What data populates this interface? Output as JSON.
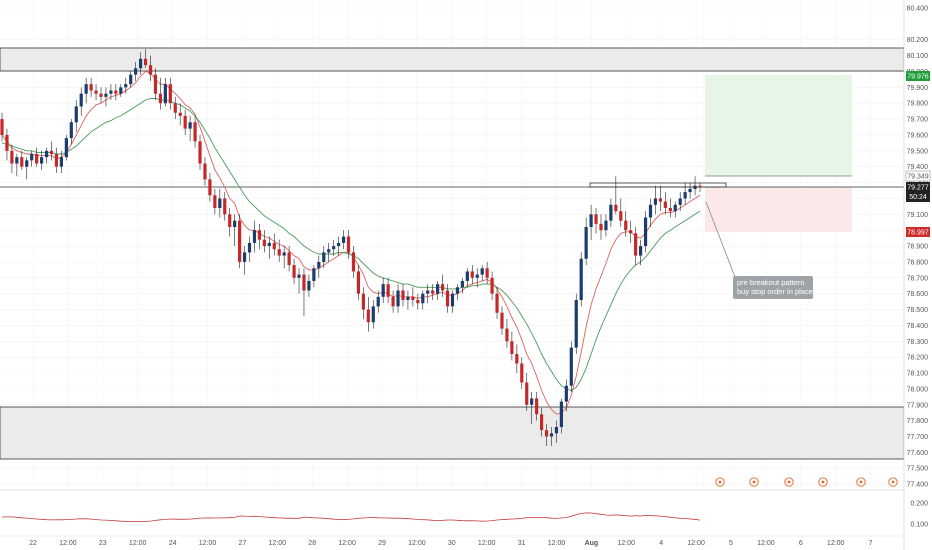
{
  "chart_data": {
    "type": "candlestick",
    "y_axis": {
      "range": [
        77.34,
        80.48
      ],
      "ticks": [
        "80.400",
        "80.200",
        "80.100",
        "80.000",
        "79.900",
        "79.800",
        "79.700",
        "79.600",
        "79.500",
        "79.400",
        "79.300",
        "79.200",
        "79.100",
        "79.000",
        "78.900",
        "78.800",
        "78.700",
        "78.600",
        "78.500",
        "78.400",
        "78.300",
        "78.200",
        "78.100",
        "78.000",
        "77.900",
        "77.800",
        "77.700",
        "77.600",
        "77.500",
        "77.400"
      ]
    },
    "x_axis": {
      "ticks": [
        "22",
        "12:00",
        "23",
        "12:00",
        "24",
        "12:00",
        "27",
        "12:00",
        "28",
        "12:00",
        "29",
        "12:00",
        "30",
        "12:00",
        "31",
        "12:00",
        "Aug",
        "12:00",
        "4",
        "12:00",
        "5",
        "12:00",
        "6",
        "12:00",
        "7"
      ]
    },
    "price_labels": {
      "target": "79.976",
      "line": "79.349",
      "current": "79.277",
      "countdown": "50:24",
      "stop": "78.997"
    },
    "indicator_axis": {
      "ticks": [
        "0.200",
        "0.100"
      ]
    },
    "annotation": "pre breakout pattern\nbuy stop order in place",
    "candles": [
      [
        79.7,
        79.74,
        79.56,
        79.6
      ],
      [
        79.6,
        79.64,
        79.44,
        79.5
      ],
      [
        79.5,
        79.54,
        79.36,
        79.42
      ],
      [
        79.42,
        79.48,
        79.34,
        79.46
      ],
      [
        79.46,
        79.5,
        79.38,
        79.4
      ],
      [
        79.4,
        79.46,
        79.32,
        79.44
      ],
      [
        79.44,
        79.5,
        79.4,
        79.48
      ],
      [
        79.48,
        79.52,
        79.4,
        79.42
      ],
      [
        79.42,
        79.5,
        79.38,
        79.46
      ],
      [
        79.46,
        79.52,
        79.42,
        79.5
      ],
      [
        79.5,
        79.56,
        79.44,
        79.48
      ],
      [
        79.48,
        79.52,
        79.36,
        79.4
      ],
      [
        79.4,
        79.5,
        79.36,
        79.46
      ],
      [
        79.46,
        79.6,
        79.44,
        79.58
      ],
      [
        79.58,
        79.7,
        79.54,
        79.68
      ],
      [
        79.68,
        79.82,
        79.62,
        79.78
      ],
      [
        79.78,
        79.9,
        79.72,
        79.86
      ],
      [
        79.86,
        79.96,
        79.8,
        79.92
      ],
      [
        79.92,
        79.96,
        79.84,
        79.88
      ],
      [
        79.88,
        79.92,
        79.82,
        79.86
      ],
      [
        79.86,
        79.9,
        79.8,
        79.84
      ],
      [
        79.84,
        79.9,
        79.78,
        79.86
      ],
      [
        79.86,
        79.92,
        79.82,
        79.88
      ],
      [
        79.88,
        79.92,
        79.82,
        79.86
      ],
      [
        79.86,
        79.92,
        79.84,
        79.9
      ],
      [
        79.9,
        79.96,
        79.86,
        79.92
      ],
      [
        79.92,
        80.0,
        79.9,
        79.98
      ],
      [
        79.98,
        80.06,
        79.94,
        80.02
      ],
      [
        80.02,
        80.12,
        79.98,
        80.08
      ],
      [
        80.08,
        80.14,
        80.02,
        80.04
      ],
      [
        80.04,
        80.1,
        79.94,
        79.98
      ],
      [
        79.98,
        80.02,
        79.82,
        79.86
      ],
      [
        79.86,
        79.96,
        79.76,
        79.8
      ],
      [
        79.8,
        79.96,
        79.78,
        79.92
      ],
      [
        79.92,
        79.96,
        79.76,
        79.8
      ],
      [
        79.8,
        79.84,
        79.7,
        79.74
      ],
      [
        79.74,
        79.8,
        79.66,
        79.72
      ],
      [
        79.72,
        79.76,
        79.6,
        79.64
      ],
      [
        79.64,
        79.72,
        79.56,
        79.68
      ],
      [
        79.68,
        79.72,
        79.52,
        79.56
      ],
      [
        79.56,
        79.6,
        79.38,
        79.42
      ],
      [
        79.42,
        79.46,
        79.28,
        79.32
      ],
      [
        79.32,
        79.36,
        79.18,
        79.22
      ],
      [
        79.22,
        79.26,
        79.1,
        79.14
      ],
      [
        79.14,
        79.26,
        79.08,
        79.2
      ],
      [
        79.2,
        79.24,
        79.06,
        79.1
      ],
      [
        79.1,
        79.14,
        78.96,
        79.02
      ],
      [
        79.02,
        79.1,
        78.9,
        79.06
      ],
      [
        79.06,
        79.1,
        78.76,
        78.8
      ],
      [
        78.8,
        78.9,
        78.72,
        78.86
      ],
      [
        78.86,
        78.96,
        78.8,
        78.92
      ],
      [
        78.92,
        79.06,
        78.86,
        79.0
      ],
      [
        79.0,
        79.04,
        78.88,
        78.94
      ],
      [
        78.94,
        79.0,
        78.86,
        78.9
      ],
      [
        78.9,
        78.96,
        78.82,
        78.92
      ],
      [
        78.92,
        78.98,
        78.84,
        78.88
      ],
      [
        78.88,
        78.94,
        78.8,
        78.84
      ],
      [
        78.84,
        78.9,
        78.76,
        78.86
      ],
      [
        78.86,
        78.9,
        78.74,
        78.78
      ],
      [
        78.78,
        78.82,
        78.66,
        78.7
      ],
      [
        78.7,
        78.76,
        78.6,
        78.72
      ],
      [
        78.72,
        78.76,
        78.46,
        78.62
      ],
      [
        78.62,
        78.72,
        78.58,
        78.68
      ],
      [
        78.68,
        78.78,
        78.64,
        78.76
      ],
      [
        78.76,
        78.84,
        78.7,
        78.8
      ],
      [
        78.8,
        78.9,
        78.76,
        78.86
      ],
      [
        78.86,
        78.92,
        78.8,
        78.88
      ],
      [
        78.88,
        78.94,
        78.84,
        78.9
      ],
      [
        78.9,
        78.96,
        78.84,
        78.92
      ],
      [
        78.92,
        79.0,
        78.88,
        78.96
      ],
      [
        78.96,
        79.0,
        78.82,
        78.86
      ],
      [
        78.86,
        78.9,
        78.7,
        78.74
      ],
      [
        78.74,
        78.78,
        78.56,
        78.6
      ],
      [
        78.6,
        78.64,
        78.44,
        78.5
      ],
      [
        78.5,
        78.58,
        78.36,
        78.42
      ],
      [
        78.42,
        78.56,
        78.38,
        78.52
      ],
      [
        78.52,
        78.62,
        78.48,
        78.58
      ],
      [
        78.58,
        78.7,
        78.54,
        78.66
      ],
      [
        78.66,
        78.7,
        78.54,
        78.58
      ],
      [
        78.58,
        78.62,
        78.48,
        78.52
      ],
      [
        78.52,
        78.66,
        78.48,
        78.62
      ],
      [
        78.62,
        78.66,
        78.52,
        78.56
      ],
      [
        78.56,
        78.62,
        78.5,
        78.58
      ],
      [
        78.58,
        78.64,
        78.52,
        78.56
      ],
      [
        78.56,
        78.6,
        78.5,
        78.54
      ],
      [
        78.54,
        78.62,
        78.5,
        78.6
      ],
      [
        78.6,
        78.66,
        78.54,
        78.62
      ],
      [
        78.62,
        78.66,
        78.56,
        78.6
      ],
      [
        78.6,
        78.68,
        78.56,
        78.66
      ],
      [
        78.66,
        78.72,
        78.58,
        78.62
      ],
      [
        78.62,
        78.66,
        78.48,
        78.52
      ],
      [
        78.52,
        78.62,
        78.48,
        78.6
      ],
      [
        78.6,
        78.66,
        78.56,
        78.64
      ],
      [
        78.64,
        78.7,
        78.6,
        78.68
      ],
      [
        78.68,
        78.76,
        78.64,
        78.74
      ],
      [
        78.74,
        78.78,
        78.66,
        78.7
      ],
      [
        78.7,
        78.76,
        78.64,
        78.72
      ],
      [
        78.72,
        78.78,
        78.68,
        78.76
      ],
      [
        78.76,
        78.8,
        78.66,
        78.7
      ],
      [
        78.7,
        78.74,
        78.56,
        78.6
      ],
      [
        78.6,
        78.64,
        78.44,
        78.48
      ],
      [
        78.48,
        78.52,
        78.34,
        78.38
      ],
      [
        78.38,
        78.44,
        78.26,
        78.3
      ],
      [
        78.3,
        78.36,
        78.18,
        78.22
      ],
      [
        78.22,
        78.28,
        78.1,
        78.16
      ],
      [
        78.16,
        78.2,
        78.0,
        78.04
      ],
      [
        78.04,
        78.1,
        77.86,
        77.9
      ],
      [
        77.9,
        77.98,
        77.78,
        77.94
      ],
      [
        77.94,
        77.98,
        77.8,
        77.84
      ],
      [
        77.84,
        77.88,
        77.7,
        77.74
      ],
      [
        77.74,
        77.78,
        77.64,
        77.7
      ],
      [
        77.7,
        77.76,
        77.64,
        77.72
      ],
      [
        77.72,
        77.8,
        77.66,
        77.76
      ],
      [
        77.76,
        77.94,
        77.72,
        77.92
      ],
      [
        77.92,
        78.06,
        77.86,
        78.02
      ],
      [
        78.02,
        78.3,
        77.98,
        78.26
      ],
      [
        78.26,
        78.6,
        78.22,
        78.56
      ],
      [
        78.56,
        78.86,
        78.52,
        78.82
      ],
      [
        78.82,
        79.08,
        78.78,
        79.02
      ],
      [
        79.02,
        79.16,
        78.94,
        79.1
      ],
      [
        79.1,
        79.14,
        78.98,
        79.04
      ],
      [
        79.04,
        79.1,
        78.94,
        79.0
      ],
      [
        79.0,
        79.1,
        78.96,
        79.06
      ],
      [
        79.06,
        79.2,
        79.02,
        79.16
      ],
      [
        79.16,
        79.34,
        79.1,
        79.12
      ],
      [
        79.12,
        79.2,
        79.02,
        79.06
      ],
      [
        79.06,
        79.12,
        78.96,
        79.0
      ],
      [
        79.0,
        79.06,
        78.92,
        78.98
      ],
      [
        78.98,
        79.02,
        78.78,
        78.84
      ],
      [
        78.84,
        78.94,
        78.78,
        78.9
      ],
      [
        78.9,
        79.12,
        78.86,
        79.08
      ],
      [
        79.08,
        79.2,
        79.02,
        79.16
      ],
      [
        79.16,
        79.28,
        79.1,
        79.2
      ],
      [
        79.2,
        79.28,
        79.12,
        79.18
      ],
      [
        79.18,
        79.24,
        79.1,
        79.14
      ],
      [
        79.14,
        79.2,
        79.08,
        79.12
      ],
      [
        79.12,
        79.18,
        79.08,
        79.16
      ],
      [
        79.16,
        79.24,
        79.12,
        79.2
      ],
      [
        79.2,
        79.3,
        79.16,
        79.24
      ],
      [
        79.24,
        79.3,
        79.2,
        79.26
      ],
      [
        79.26,
        79.34,
        79.22,
        79.28
      ],
      [
        79.28,
        79.3,
        79.24,
        79.27
      ]
    ],
    "ema_fast": [
      79.6,
      79.56,
      79.52,
      79.5,
      79.49,
      79.48,
      79.48,
      79.47,
      79.47,
      79.47,
      79.47,
      79.45,
      79.46,
      79.49,
      79.54,
      79.6,
      79.66,
      79.72,
      79.76,
      79.79,
      79.8,
      79.82,
      79.84,
      79.85,
      79.86,
      79.88,
      79.9,
      79.93,
      79.97,
      80.0,
      79.99,
      79.95,
      79.92,
      79.92,
      79.89,
      79.86,
      79.83,
      79.79,
      79.77,
      79.73,
      79.65,
      79.56,
      79.47,
      79.38,
      79.33,
      79.27,
      79.2,
      79.17,
      79.08,
      79.03,
      79.0,
      79.0,
      78.98,
      78.96,
      78.95,
      78.93,
      78.91,
      78.9,
      78.87,
      78.84,
      78.82,
      78.77,
      78.75,
      78.75,
      78.76,
      78.78,
      78.8,
      78.82,
      78.84,
      78.86,
      78.86,
      78.83,
      78.78,
      78.72,
      78.64,
      78.61,
      78.6,
      78.61,
      78.6,
      78.58,
      78.59,
      78.58,
      78.58,
      78.58,
      78.57,
      78.58,
      78.58,
      78.59,
      78.6,
      78.61,
      78.59,
      78.59,
      78.6,
      78.62,
      78.65,
      78.66,
      78.67,
      78.68,
      78.69,
      78.67,
      78.63,
      78.58,
      78.52,
      78.45,
      78.39,
      78.31,
      78.22,
      78.16,
      78.08,
      77.99,
      77.92,
      77.87,
      77.84,
      77.85,
      77.88,
      77.96,
      78.08,
      78.23,
      78.39,
      78.53,
      78.63,
      78.71,
      78.79,
      78.88,
      78.94,
      78.98,
      78.99,
      78.99,
      78.96,
      78.95,
      78.98,
      79.03,
      79.07,
      79.1,
      79.11,
      79.11,
      79.12,
      79.14,
      79.16,
      79.18,
      79.2,
      79.22
    ],
    "ema_slow": [
      79.55,
      79.54,
      79.53,
      79.52,
      79.51,
      79.5,
      79.5,
      79.49,
      79.49,
      79.49,
      79.49,
      79.48,
      79.48,
      79.49,
      79.51,
      79.53,
      79.56,
      79.59,
      79.62,
      79.64,
      79.66,
      79.68,
      79.69,
      79.71,
      79.72,
      79.74,
      79.76,
      79.78,
      79.8,
      79.82,
      79.83,
      79.83,
      79.82,
      79.82,
      79.81,
      79.8,
      79.79,
      79.77,
      79.75,
      79.72,
      79.68,
      79.63,
      79.58,
      79.52,
      79.47,
      79.42,
      79.37,
      79.32,
      79.27,
      79.22,
      79.18,
      79.15,
      79.12,
      79.09,
      79.07,
      79.05,
      79.03,
      79.01,
      78.98,
      78.96,
      78.93,
      78.9,
      78.88,
      78.86,
      78.85,
      78.85,
      78.85,
      78.85,
      78.86,
      78.86,
      78.85,
      78.84,
      78.82,
      78.79,
      78.76,
      78.73,
      78.71,
      78.7,
      78.69,
      78.68,
      78.67,
      78.66,
      78.66,
      78.65,
      78.64,
      78.64,
      78.64,
      78.64,
      78.64,
      78.64,
      78.63,
      78.63,
      78.63,
      78.64,
      78.64,
      78.65,
      78.65,
      78.66,
      78.66,
      78.66,
      78.64,
      78.62,
      78.59,
      78.55,
      78.51,
      78.46,
      78.41,
      78.35,
      78.29,
      78.22,
      78.16,
      78.11,
      78.06,
      78.02,
      78.0,
      77.99,
      78.01,
      78.06,
      78.13,
      78.22,
      78.31,
      78.39,
      78.46,
      78.53,
      78.6,
      78.66,
      78.71,
      78.75,
      78.78,
      78.8,
      78.83,
      78.87,
      78.91,
      78.95,
      78.98,
      79.0,
      79.02,
      79.04,
      79.06,
      79.08,
      79.1,
      79.12
    ]
  }
}
